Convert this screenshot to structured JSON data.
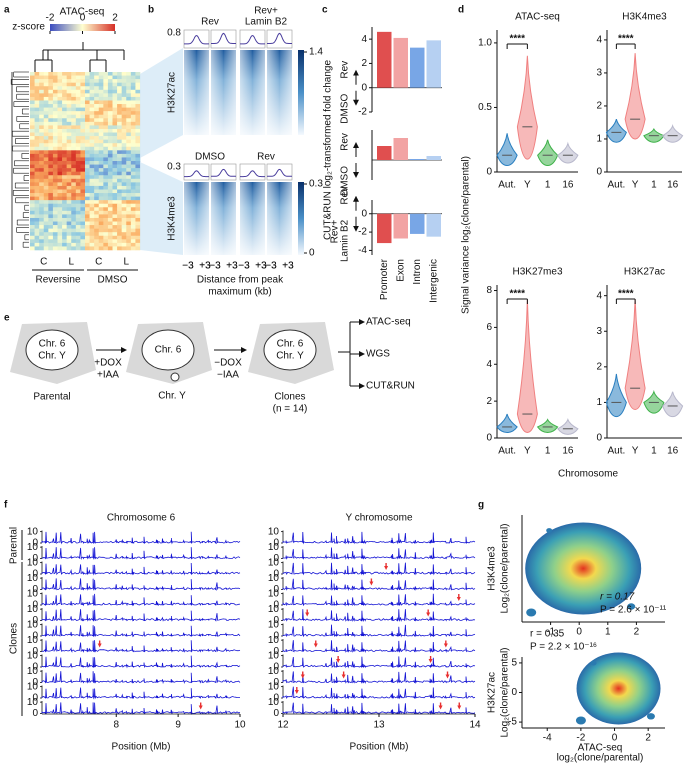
{
  "panel_letters": [
    "a",
    "b",
    "c",
    "d",
    "e",
    "f",
    "g"
  ],
  "a": {
    "title": "ATAC-seq",
    "scale_label": "z-score",
    "scale_ticks": [
      -2,
      0,
      2
    ],
    "columns": [
      "C",
      "L",
      "C",
      "L"
    ],
    "groups": [
      "Reversine",
      "DMSO"
    ]
  },
  "b": {
    "headers_top": [
      [
        "Rev"
      ],
      [
        "Rev+",
        "Lamin B2"
      ]
    ],
    "headers_bottom": [
      "DMSO",
      "Rev"
    ],
    "marks": [
      "H3K27ac",
      "H3K4me3"
    ],
    "profile_max": [
      0.8,
      0.3
    ],
    "scale_top": [
      1.4
    ],
    "scale_bottom": [
      0.3,
      0
    ],
    "xticks": [
      "−3",
      "+3"
    ],
    "xlabel": [
      "Distance from peak",
      "maximum (kb)"
    ]
  },
  "c": {
    "ylabel": "CUT&RUN log₂-transformed fold change",
    "categories": [
      "Promoter",
      "Exon",
      "Intron",
      "Intergenic"
    ],
    "colors": [
      "#e04f4f",
      "#f2a3a3",
      "#78a6e6",
      "#b6d0f2"
    ],
    "panels": [
      {
        "up": [
          "Rev"
        ],
        "down": [
          "DMSO"
        ],
        "values": [
          4.6,
          4.1,
          3.3,
          3.9
        ],
        "ylim": [
          -2,
          5
        ],
        "yticks": [
          -2,
          0,
          2,
          4
        ]
      },
      {
        "up": [
          "Rev"
        ],
        "down": [
          "DMSO"
        ],
        "values": [
          0.7,
          1.1,
          0.05,
          0.2
        ],
        "ylim": [
          -1,
          1.5
        ],
        "yticks": []
      },
      {
        "up": [
          "Rev"
        ],
        "down": [
          "Rev+",
          "Lamin B2"
        ],
        "values": [
          -3.2,
          -2.7,
          -2.2,
          -2.5
        ],
        "ylim": [
          -4.5,
          1.5
        ],
        "yticks": [
          -4,
          -2,
          0
        ]
      }
    ]
  },
  "d": {
    "cells": [
      {
        "lines": [
          "Chr. 6",
          "Chr. Y"
        ],
        "caption": [
          "Parental"
        ]
      },
      {
        "lines": [
          "Chr. 6"
        ],
        "outside": "Chr. Y",
        "caption": []
      },
      {
        "lines": [
          "Chr. 6",
          "Chr. Y"
        ],
        "caption": [
          "Clones",
          "(n = 14)"
        ]
      }
    ],
    "step1": [
      "+DOX",
      "+IAA"
    ],
    "step2": [
      "−DOX",
      "−IAA"
    ],
    "outputs": [
      "ATAC-seq",
      "WGS",
      "CUT&RUN"
    ]
  },
  "e": {
    "ylabel": "Signal variance log₂(clone/parental)",
    "xlabel": "Chromosome",
    "categories": [
      "Aut.",
      "Y",
      "1",
      "16"
    ],
    "colors": [
      "#2a7fc0",
      "#f08080",
      "#3fb24a",
      "#b8b8cc"
    ],
    "significance": "****",
    "panels": [
      {
        "title": "ATAC-seq",
        "ylim": [
          0,
          1.1
        ],
        "yticks": [
          0,
          0.5,
          {
            "value": 1,
            "label": "1.0"
          }
        ],
        "medians": [
          0.13,
          0.35,
          0.13,
          0.13
        ],
        "min": [
          0.05,
          0.1,
          0.05,
          0.07
        ],
        "max": [
          0.3,
          0.9,
          0.25,
          0.22
        ]
      },
      {
        "title": "H3K4me3",
        "ylim": [
          0,
          4.3
        ],
        "yticks": [
          0,
          1,
          2,
          3,
          4
        ],
        "medians": [
          1.2,
          1.6,
          1.1,
          1.1
        ],
        "min": [
          0.9,
          1.0,
          0.9,
          0.9
        ],
        "max": [
          1.6,
          3.6,
          1.3,
          1.4
        ]
      },
      {
        "title": "H3K27me3",
        "ylim": [
          0,
          8.3
        ],
        "yticks": [
          0,
          2,
          4,
          6,
          8
        ],
        "medians": [
          0.6,
          1.3,
          0.6,
          0.5
        ],
        "min": [
          0.3,
          0.3,
          0.3,
          0.2
        ],
        "max": [
          1.3,
          7.5,
          1.0,
          1.0
        ]
      },
      {
        "title": "H3K27ac",
        "ylim": [
          0,
          4.3
        ],
        "yticks": [
          0,
          1,
          2,
          3,
          4
        ],
        "medians": [
          1.0,
          1.4,
          1.0,
          0.9
        ],
        "min": [
          0.6,
          0.8,
          0.7,
          0.6
        ],
        "max": [
          1.8,
          3.9,
          1.3,
          1.3
        ]
      }
    ]
  },
  "f": {
    "panels": [
      {
        "title": "Chromosome 6",
        "xlim": [
          6.8,
          10
        ],
        "xticks": [
          8,
          9,
          10
        ]
      },
      {
        "title": "Y chromosome",
        "xlim": [
          12,
          14
        ],
        "xticks": [
          12,
          13,
          14
        ]
      }
    ],
    "ylim": [
      0,
      11
    ],
    "yticks": [
      0,
      10
    ],
    "groups": [
      "Parental",
      "Clones"
    ],
    "xlabel": "Position (Mb)",
    "color": "#1414d4"
  },
  "g": {
    "panels": [
      {
        "ylabel": [
          "H3K4me3",
          "Log₂(clone/parental)"
        ],
        "r": "r = 0.17",
        "P": "P = 2.6 × 10⁻¹¹",
        "xlim": [
          -2,
          3
        ],
        "xticks": [
          -1,
          0,
          1,
          2
        ]
      },
      {
        "ylabel": [
          "H3K27ac",
          "Log₂(clone/parental)"
        ],
        "r": "r = 0.35",
        "P": "P = 2.2 × 10⁻¹⁶",
        "xlim": [
          -5.5,
          3
        ],
        "xticks": [
          -4,
          -2,
          0,
          2
        ],
        "ylim": [
          -6,
          6
        ],
        "yticks": [
          -5,
          0,
          5
        ],
        "xlabel": [
          "ATAC-seq",
          "log₂(clone/parental)"
        ]
      }
    ]
  }
}
